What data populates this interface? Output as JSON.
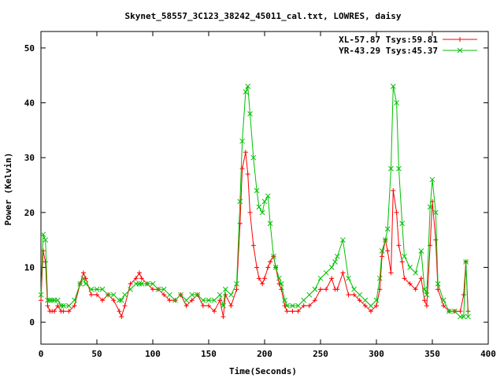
{
  "chart_data": {
    "type": "line",
    "title": "Skynet_58557_3C123_38242_45011_cal.txt, LOWRES, daisy",
    "xlabel": "Time(Seconds)",
    "ylabel": "Power (Kelvin)",
    "xlim": [
      0,
      400
    ],
    "ylim": [
      -4,
      53
    ],
    "xticks": [
      0,
      50,
      100,
      150,
      200,
      250,
      300,
      350,
      400
    ],
    "yticks": [
      0,
      10,
      20,
      30,
      40,
      50
    ],
    "grid": false,
    "legend_position": "top-right",
    "series": [
      {
        "name": "XL-57.87 Tsys:59.81",
        "color": "#ff0000",
        "marker": "+",
        "x": [
          0,
          2,
          4,
          6,
          8,
          10,
          12,
          15,
          18,
          20,
          25,
          30,
          35,
          38,
          40,
          45,
          50,
          55,
          60,
          65,
          70,
          72,
          75,
          80,
          85,
          88,
          90,
          95,
          100,
          105,
          110,
          115,
          120,
          125,
          130,
          135,
          140,
          145,
          150,
          155,
          160,
          163,
          165,
          170,
          175,
          178,
          180,
          183,
          185,
          187,
          190,
          193,
          195,
          198,
          200,
          203,
          205,
          208,
          210,
          213,
          215,
          218,
          220,
          225,
          230,
          235,
          240,
          245,
          250,
          255,
          260,
          263,
          265,
          270,
          275,
          280,
          285,
          290,
          295,
          300,
          303,
          305,
          308,
          310,
          313,
          315,
          318,
          320,
          323,
          325,
          330,
          335,
          340,
          343,
          345,
          348,
          350,
          353,
          355,
          360,
          365,
          370,
          375,
          378,
          380,
          382
        ],
        "y": [
          4,
          13,
          11,
          3,
          2,
          2,
          2,
          3,
          2,
          2,
          2,
          3,
          7,
          9,
          8,
          5,
          5,
          4,
          5,
          4,
          2,
          1,
          3,
          7,
          8,
          9,
          8,
          7,
          6,
          6,
          5,
          4,
          4,
          5,
          3,
          4,
          5,
          3,
          3,
          2,
          4,
          1,
          5,
          3,
          6,
          18,
          28,
          31,
          27,
          20,
          14,
          10,
          8,
          7,
          8,
          10,
          11,
          12,
          10,
          7,
          6,
          3,
          2,
          2,
          2,
          3,
          3,
          4,
          6,
          6,
          8,
          6,
          6,
          9,
          5,
          5,
          4,
          3,
          2,
          3,
          6,
          12,
          15,
          13,
          9,
          24,
          20,
          14,
          11,
          8,
          7,
          6,
          8,
          4,
          3,
          14,
          22,
          15,
          6,
          3,
          2,
          2,
          2,
          5,
          11,
          2
        ]
      },
      {
        "name": "YR-43.29 Tsys:45.37",
        "color": "#00c000",
        "marker": "x",
        "x": [
          0,
          2,
          4,
          6,
          8,
          10,
          12,
          15,
          18,
          20,
          25,
          30,
          35,
          38,
          40,
          45,
          50,
          55,
          60,
          65,
          70,
          72,
          75,
          80,
          85,
          88,
          90,
          95,
          100,
          105,
          110,
          115,
          120,
          125,
          130,
          135,
          140,
          145,
          150,
          155,
          160,
          163,
          165,
          170,
          175,
          178,
          180,
          183,
          185,
          187,
          190,
          193,
          195,
          198,
          200,
          203,
          205,
          208,
          210,
          213,
          215,
          218,
          220,
          225,
          230,
          235,
          240,
          245,
          250,
          255,
          260,
          263,
          265,
          270,
          275,
          280,
          285,
          290,
          295,
          300,
          303,
          305,
          308,
          310,
          313,
          315,
          318,
          320,
          323,
          325,
          330,
          335,
          340,
          343,
          345,
          348,
          350,
          353,
          355,
          360,
          365,
          370,
          375,
          378,
          380,
          382
        ],
        "y": [
          5,
          16,
          15,
          4,
          4,
          4,
          4,
          4,
          3,
          3,
          3,
          4,
          7,
          8,
          7,
          6,
          6,
          6,
          5,
          5,
          4,
          4,
          5,
          6,
          7,
          7,
          7,
          7,
          7,
          6,
          6,
          5,
          4,
          5,
          4,
          5,
          5,
          4,
          4,
          4,
          5,
          3,
          6,
          5,
          7,
          22,
          33,
          42,
          43,
          38,
          30,
          24,
          21,
          20,
          22,
          23,
          18,
          12,
          10,
          8,
          7,
          4,
          3,
          3,
          3,
          4,
          5,
          6,
          8,
          9,
          10,
          11,
          12,
          15,
          8,
          6,
          5,
          4,
          3,
          4,
          8,
          13,
          15,
          17,
          28,
          43,
          40,
          28,
          18,
          12,
          10,
          9,
          13,
          6,
          5,
          21,
          26,
          20,
          7,
          4,
          2,
          2,
          1,
          1,
          11,
          1
        ]
      }
    ]
  }
}
